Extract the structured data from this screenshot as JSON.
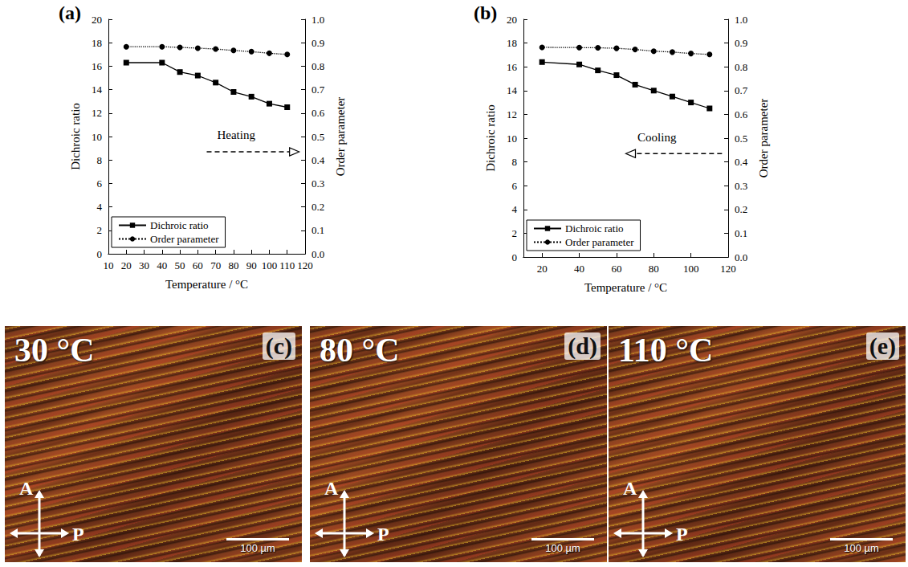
{
  "chart_data": [
    {
      "type": "line",
      "panel": "(a)",
      "x_label": "Temperature / °C",
      "y_label": "Dichroic ratio",
      "y2_label": "Order parameter",
      "annotation": {
        "text": "Heating",
        "arrow": "right"
      },
      "x": [
        20,
        40,
        50,
        60,
        70,
        80,
        90,
        100,
        110
      ],
      "series": [
        {
          "name": "Dichroic ratio",
          "color": "#000000",
          "marker": "square",
          "line_style": "solid",
          "values": [
            16.3,
            16.3,
            15.5,
            15.2,
            14.6,
            13.8,
            13.4,
            12.8,
            12.5
          ]
        },
        {
          "name": "Order parameter",
          "color": "#000000",
          "marker": "circle",
          "line_style": "dotted",
          "axis": "y2",
          "values": [
            0.883,
            0.883,
            0.88,
            0.877,
            0.873,
            0.867,
            0.862,
            0.855,
            0.85
          ]
        }
      ],
      "xlim": [
        10,
        120
      ],
      "xticks": [
        10,
        20,
        30,
        40,
        50,
        60,
        70,
        80,
        90,
        100,
        110,
        120
      ],
      "ylim": [
        0,
        20
      ],
      "yticks": [
        0,
        2,
        4,
        6,
        8,
        10,
        12,
        14,
        16,
        18,
        20
      ],
      "y2lim": [
        0,
        1
      ],
      "y2ticks": [
        {
          "value": 0,
          "label": "0.0"
        },
        0.1,
        0.2,
        0.3,
        0.4,
        0.5,
        0.6,
        0.7,
        0.8,
        0.9,
        {
          "value": 1,
          "label": "1.0"
        }
      ],
      "grid": false,
      "legend": "lower left"
    },
    {
      "type": "line",
      "panel": "(b)",
      "x_label": "Temperature / °C",
      "y_label": "Dichroic ratio",
      "y2_label": "Order parameter",
      "annotation": {
        "text": "Cooling",
        "arrow": "left"
      },
      "x": [
        20,
        40,
        50,
        60,
        70,
        80,
        90,
        100,
        110
      ],
      "series": [
        {
          "name": "Dichroic ratio",
          "color": "#000000",
          "marker": "square",
          "line_style": "solid",
          "values": [
            16.4,
            16.2,
            15.7,
            15.3,
            14.5,
            14.0,
            13.5,
            13.0,
            12.5
          ]
        },
        {
          "name": "Order parameter",
          "color": "#000000",
          "marker": "circle",
          "line_style": "dotted",
          "axis": "y2",
          "values": [
            0.882,
            0.881,
            0.88,
            0.878,
            0.873,
            0.866,
            0.862,
            0.856,
            0.852
          ]
        }
      ],
      "xlim": [
        10,
        120
      ],
      "xticks": [
        20,
        40,
        60,
        80,
        100,
        120
      ],
      "ylim": [
        0,
        20
      ],
      "yticks": [
        0,
        2,
        4,
        6,
        8,
        10,
        12,
        14,
        16,
        18,
        20
      ],
      "y2lim": [
        0,
        1
      ],
      "y2ticks": [
        {
          "value": 0,
          "label": "0.0"
        },
        0.1,
        0.2,
        0.3,
        0.4,
        0.5,
        0.6,
        0.7,
        0.8,
        0.9,
        {
          "value": 1,
          "label": "1.0"
        }
      ],
      "grid": false,
      "legend": "lower left"
    }
  ],
  "micrographs": [
    {
      "panel": "(c)",
      "temperature": "30 °C",
      "analyzer": "A",
      "polarizer": "P",
      "scale_bar": "100 µm"
    },
    {
      "panel": "(d)",
      "temperature": "80 °C",
      "analyzer": "A",
      "polarizer": "P",
      "scale_bar": "100 µm"
    },
    {
      "panel": "(e)",
      "temperature": "110 °C",
      "analyzer": "A",
      "polarizer": "P",
      "scale_bar": "100 µm"
    }
  ]
}
